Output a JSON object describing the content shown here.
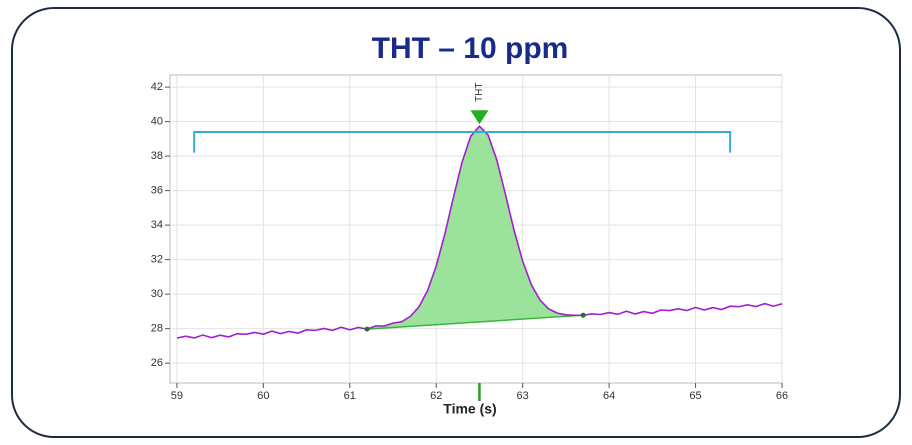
{
  "chart_data": {
    "type": "line",
    "title": "THT – 10 ppm",
    "xlabel": "Time (s)",
    "color": "#a020d0",
    "x": [
      59.0,
      59.1,
      59.2,
      59.3,
      59.4,
      59.5,
      59.6,
      59.7,
      59.8,
      59.9,
      60.0,
      60.1,
      60.2,
      60.3,
      60.4,
      60.5,
      60.6,
      60.7,
      60.8,
      60.9,
      61.0,
      61.1,
      61.2,
      61.3,
      61.4,
      61.5,
      61.6,
      61.7,
      61.8,
      61.9,
      62.0,
      62.1,
      62.2,
      62.3,
      62.4,
      62.5,
      62.6,
      62.7,
      62.8,
      62.9,
      63.0,
      63.1,
      63.2,
      63.3,
      63.4,
      63.5,
      63.6,
      63.7,
      63.8,
      63.9,
      64.0,
      64.1,
      64.2,
      64.3,
      64.4,
      64.5,
      64.6,
      64.7,
      64.8,
      64.9,
      65.0,
      65.1,
      65.2,
      65.3,
      65.4,
      65.5,
      65.6,
      65.7,
      65.8,
      65.9,
      66.0
    ],
    "values": [
      27.45,
      27.56,
      27.46,
      27.63,
      27.48,
      27.62,
      27.52,
      27.71,
      27.67,
      27.78,
      27.68,
      27.86,
      27.71,
      27.84,
      27.74,
      27.93,
      27.9,
      28.01,
      27.9,
      28.08,
      27.93,
      28.07,
      27.97,
      28.16,
      28.15,
      28.32,
      28.4,
      28.71,
      29.26,
      30.21,
      31.63,
      33.49,
      35.63,
      37.67,
      39.16,
      39.73,
      39.22,
      37.79,
      35.79,
      33.71,
      31.91,
      30.55,
      29.66,
      29.15,
      28.9,
      28.8,
      28.77,
      28.78,
      28.85,
      28.82,
      28.93,
      28.83,
      29.01,
      28.85,
      28.99,
      28.89,
      29.08,
      29.05,
      29.15,
      29.05,
      29.23,
      29.08,
      29.22,
      29.11,
      29.3,
      29.27,
      29.38,
      29.28,
      29.45,
      29.3,
      29.44
    ],
    "xlim": [
      58.92,
      66
    ],
    "ylim": [
      24.85,
      42.7
    ],
    "xticks": [
      59,
      60,
      61,
      62,
      63,
      64,
      65,
      66
    ],
    "yticks": [
      42,
      40,
      38,
      36,
      34,
      32,
      30,
      28,
      26
    ],
    "grid": true,
    "peak": {
      "label": "THT",
      "start": 61.2,
      "apex": 62.5,
      "end": 63.7,
      "color": "#3cb43c",
      "fill": "#90e090"
    },
    "integration_window": {
      "start": 59.2,
      "end": 65.4,
      "y": 39.4,
      "y_end": 38.2,
      "color": "#3aa8d8"
    }
  }
}
